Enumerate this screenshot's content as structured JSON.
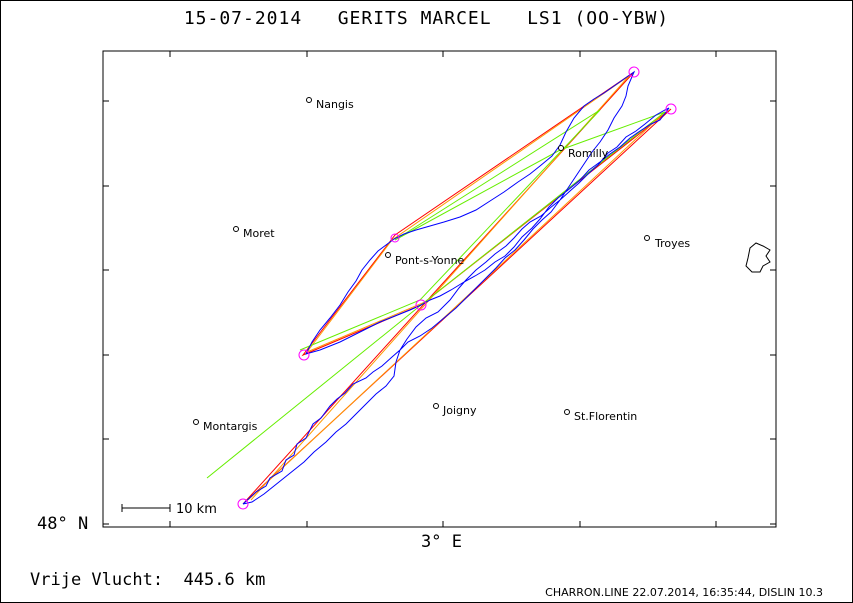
{
  "title": "15-07-2014   GERITS MARCEL   LS1 (OO-YBW)",
  "axes": {
    "latitude_label": "48° N",
    "longitude_label": "3° E"
  },
  "scale_bar": {
    "label": "10 km"
  },
  "distance_label": "Vrije Vlucht:  445.6 km",
  "footer": "CHARRON.LINE 22.07.2014, 16:35:44, DISLIN 10.3",
  "colors": {
    "track": "#0000ff",
    "turnpoint": "#ff00ff",
    "leg_red": "#ff0000",
    "leg_orange": "#ff9900",
    "leg_green": "#66ee00"
  },
  "cities": [
    {
      "name": "Nangis"
    },
    {
      "name": "Romilly"
    },
    {
      "name": "Moret"
    },
    {
      "name": "Troyes"
    },
    {
      "name": "Pont-s-Yonne"
    },
    {
      "name": "Montargis"
    },
    {
      "name": "Joigny"
    },
    {
      "name": "St.Florentin"
    }
  ]
}
